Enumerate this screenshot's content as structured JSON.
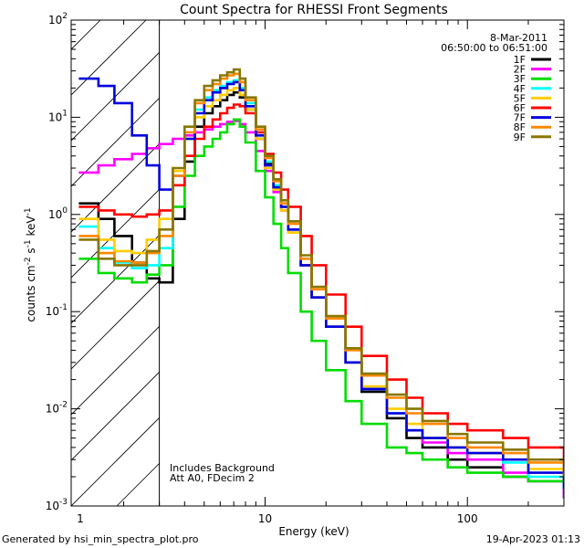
{
  "chart_data": {
    "type": "line",
    "title": "Count Spectra for RHESSI Front Segments",
    "xlabel": "Energy (keV)",
    "ylabel": "counts cm⁻² s⁻¹ keV⁻¹",
    "ylabel_parts": {
      "base": "counts cm",
      "e1": "-2",
      "s": " s",
      "e2": "-1",
      "k": " keV",
      "e3": "-1"
    },
    "xscale": "log",
    "yscale": "log",
    "xlim": [
      1.1,
      300
    ],
    "ylim": [
      0.001,
      100
    ],
    "x_ticks": [
      {
        "v": 10,
        "label": "10"
      },
      {
        "v": 100,
        "label": "100"
      }
    ],
    "y_ticks": [
      {
        "v": 0.001,
        "base": "10",
        "exp": "-3"
      },
      {
        "v": 0.01,
        "base": "10",
        "exp": "-2"
      },
      {
        "v": 0.1,
        "base": "10",
        "exp": "-1"
      },
      {
        "v": 1,
        "base": "10",
        "exp": "0"
      },
      {
        "v": 10,
        "base": "10",
        "exp": "1"
      },
      {
        "v": 100,
        "base": "10",
        "exp": "2"
      }
    ],
    "x_first_tick_label": "1",
    "hatched_region": [
      1.1,
      3.0
    ],
    "annotations": {
      "date": "8-Mar-2011",
      "time_range": "06:50:00 to 06:51:00",
      "note1": "Includes Background",
      "note2": "Att A0, FDecim 2"
    },
    "footer_left": "Generated by hsi_min_spectra_plot.pro",
    "footer_right": "19-Apr-2023 01:13",
    "series": [
      {
        "name": "1F",
        "color": "#000000",
        "x": [
          1.2,
          1.5,
          1.8,
          2.2,
          2.6,
          3.0,
          3.5,
          4.0,
          4.5,
          5.0,
          5.5,
          6.0,
          6.5,
          7.0,
          7.5,
          8.0,
          9.0,
          10,
          11,
          12,
          13,
          15,
          17,
          20,
          25,
          30,
          40,
          50,
          60,
          80,
          100,
          150,
          200,
          300
        ],
        "y": [
          1.3,
          0.9,
          0.6,
          0.32,
          0.22,
          0.2,
          0.9,
          3.5,
          8,
          11,
          13,
          15,
          17,
          18,
          16,
          12,
          6,
          3.3,
          1.9,
          1.2,
          0.7,
          0.3,
          0.14,
          0.07,
          0.03,
          0.015,
          0.008,
          0.005,
          0.004,
          0.003,
          0.0025,
          0.002,
          0.0018,
          0.0012
        ]
      },
      {
        "name": "2F",
        "color": "#ff00ff",
        "x": [
          1.2,
          1.5,
          1.8,
          2.2,
          2.6,
          3.0,
          3.5,
          4.0,
          4.5,
          5.0,
          5.5,
          6.0,
          6.5,
          7.0,
          7.5,
          8.0,
          9.0,
          10,
          11,
          12,
          13,
          15,
          17,
          20,
          25,
          30,
          40,
          50,
          60,
          80,
          100,
          150,
          200,
          300
        ],
        "y": [
          2.7,
          3.2,
          3.7,
          4.2,
          4.8,
          5.3,
          6,
          6.5,
          7,
          7.5,
          8,
          8.5,
          9,
          9.2,
          8.5,
          7,
          4.5,
          2.8,
          1.7,
          1.1,
          0.65,
          0.3,
          0.14,
          0.07,
          0.03,
          0.016,
          0.009,
          0.006,
          0.0045,
          0.0035,
          0.003,
          0.0022,
          0.0018,
          0.0012
        ]
      },
      {
        "name": "3F",
        "color": "#00dd00",
        "x": [
          1.2,
          1.5,
          1.8,
          2.2,
          2.6,
          3.0,
          3.5,
          4.0,
          4.5,
          5.0,
          5.5,
          6.0,
          6.5,
          7.0,
          7.5,
          8.0,
          9.0,
          10,
          11,
          12,
          13,
          15,
          17,
          20,
          25,
          30,
          40,
          50,
          60,
          80,
          100,
          150,
          200,
          300
        ],
        "y": [
          0.35,
          0.25,
          0.22,
          0.2,
          0.24,
          0.3,
          1.2,
          2.5,
          4,
          5,
          6,
          7,
          8.5,
          9.5,
          8,
          5.5,
          2.8,
          1.5,
          0.8,
          0.45,
          0.25,
          0.1,
          0.05,
          0.025,
          0.012,
          0.007,
          0.004,
          0.0035,
          0.003,
          0.0025,
          0.0022,
          0.002,
          0.0018,
          0.0015
        ]
      },
      {
        "name": "4F",
        "color": "#00ffff",
        "x": [
          1.2,
          1.5,
          1.8,
          2.2,
          2.6,
          3.0,
          3.5,
          4.0,
          4.5,
          5.0,
          5.5,
          6.0,
          6.5,
          7.0,
          7.5,
          8.0,
          9.0,
          10,
          11,
          12,
          13,
          15,
          17,
          20,
          25,
          30,
          40,
          50,
          60,
          80,
          100,
          150,
          200,
          300
        ],
        "y": [
          0.75,
          0.45,
          0.32,
          0.28,
          0.3,
          0.45,
          2,
          6,
          12,
          16,
          19,
          21,
          23,
          24,
          20,
          14,
          7,
          3.5,
          2,
          1.2,
          0.7,
          0.3,
          0.14,
          0.07,
          0.03,
          0.016,
          0.009,
          0.006,
          0.005,
          0.004,
          0.0035,
          0.0028,
          0.002,
          0.0015
        ]
      },
      {
        "name": "5F",
        "color": "#ffcc00",
        "x": [
          1.2,
          1.5,
          1.8,
          2.2,
          2.6,
          3.0,
          3.5,
          4.0,
          4.5,
          5.0,
          5.5,
          6.0,
          6.5,
          7.0,
          7.5,
          8.0,
          9.0,
          10,
          11,
          12,
          13,
          15,
          17,
          20,
          25,
          30,
          40,
          50,
          60,
          80,
          100,
          150,
          200,
          300
        ],
        "y": [
          0.9,
          0.55,
          0.42,
          0.4,
          0.55,
          0.9,
          2.8,
          6,
          10,
          13,
          15,
          17,
          19,
          20,
          17,
          12,
          6,
          3,
          1.8,
          1.1,
          0.65,
          0.3,
          0.14,
          0.07,
          0.03,
          0.017,
          0.01,
          0.007,
          0.005,
          0.004,
          0.0035,
          0.003,
          0.0024,
          0.0018
        ]
      },
      {
        "name": "6F",
        "color": "#ff0000",
        "x": [
          1.2,
          1.5,
          1.8,
          2.2,
          2.6,
          3.0,
          3.5,
          4.0,
          4.5,
          5.0,
          5.5,
          6.0,
          6.5,
          7.0,
          7.5,
          8.0,
          9.0,
          10,
          11,
          12,
          13,
          15,
          17,
          20,
          25,
          30,
          40,
          50,
          60,
          80,
          100,
          150,
          200,
          300
        ],
        "y": [
          1.2,
          1.1,
          1.0,
          0.95,
          1.0,
          1.1,
          2,
          4,
          6,
          8,
          9.5,
          11,
          12.5,
          13.5,
          13,
          11,
          7,
          4.2,
          2.7,
          1.8,
          1.2,
          0.6,
          0.3,
          0.15,
          0.07,
          0.035,
          0.02,
          0.013,
          0.009,
          0.007,
          0.006,
          0.005,
          0.004,
          0.002
        ]
      },
      {
        "name": "7F",
        "color": "#0000dd",
        "x": [
          1.2,
          1.5,
          1.8,
          2.2,
          2.6,
          3.0,
          3.5,
          4.0,
          4.5,
          5.0,
          5.5,
          6.0,
          6.5,
          7.0,
          7.5,
          8.0,
          9.0,
          10,
          11,
          12,
          13,
          15,
          17,
          20,
          25,
          30,
          40,
          50,
          60,
          80,
          100,
          150,
          200,
          300
        ],
        "y": [
          25,
          21,
          14,
          6.5,
          3.2,
          1.8,
          2.5,
          6,
          11,
          15,
          18,
          20,
          22,
          23,
          19,
          13,
          6.5,
          3.2,
          1.9,
          1.2,
          0.7,
          0.3,
          0.14,
          0.07,
          0.03,
          0.016,
          0.009,
          0.006,
          0.005,
          0.004,
          0.0035,
          0.003,
          0.0022,
          0.0015
        ]
      },
      {
        "name": "8F",
        "color": "#ff8800",
        "x": [
          1.2,
          1.5,
          1.8,
          2.2,
          2.6,
          3.0,
          3.5,
          4.0,
          4.5,
          5.0,
          5.5,
          6.0,
          6.5,
          7.0,
          7.5,
          8.0,
          9.0,
          10,
          11,
          12,
          13,
          15,
          17,
          20,
          25,
          30,
          40,
          50,
          60,
          80,
          100,
          150,
          200,
          300
        ],
        "y": [
          0.6,
          0.4,
          0.33,
          0.32,
          0.4,
          0.6,
          2.5,
          7,
          14,
          19,
          22,
          25,
          27,
          28,
          23,
          15,
          7.5,
          3.8,
          2.2,
          1.3,
          0.8,
          0.35,
          0.17,
          0.085,
          0.04,
          0.022,
          0.013,
          0.009,
          0.007,
          0.005,
          0.004,
          0.0035,
          0.0028,
          0.002
        ]
      },
      {
        "name": "9F",
        "color": "#887700",
        "x": [
          1.2,
          1.5,
          1.8,
          2.2,
          2.6,
          3.0,
          3.5,
          4.0,
          4.5,
          5.0,
          5.5,
          6.0,
          6.5,
          7.0,
          7.5,
          8.0,
          9.0,
          10,
          11,
          12,
          13,
          15,
          17,
          20,
          25,
          30,
          40,
          50,
          60,
          80,
          100,
          150,
          200,
          300
        ],
        "y": [
          0.55,
          0.35,
          0.3,
          0.3,
          0.42,
          0.7,
          3,
          8,
          15,
          21,
          24,
          27,
          29,
          31,
          25,
          16,
          8,
          4,
          2.3,
          1.4,
          0.85,
          0.38,
          0.18,
          0.09,
          0.042,
          0.023,
          0.014,
          0.01,
          0.0075,
          0.0055,
          0.0045,
          0.0038,
          0.003,
          0.0022
        ]
      }
    ]
  }
}
